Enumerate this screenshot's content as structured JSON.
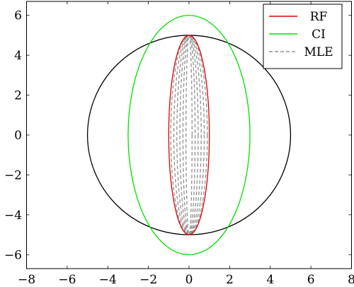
{
  "chart_data": {
    "type": "line",
    "title": "",
    "xlabel": "",
    "ylabel": "",
    "xlim": [
      -8,
      8
    ],
    "ylim": [
      -6.7,
      6.7
    ],
    "x_ticks": [
      -8,
      -6,
      -4,
      -2,
      0,
      2,
      4,
      6,
      8
    ],
    "y_ticks": [
      -6,
      -4,
      -2,
      0,
      2,
      4,
      6
    ],
    "x_tick_labels": [
      "−8",
      "−6",
      "−4",
      "−2",
      "0",
      "2",
      "4",
      "6",
      "8"
    ],
    "y_tick_labels": [
      "−6",
      "−4",
      "−2",
      "0",
      "2",
      "4",
      "6"
    ],
    "grid": false,
    "legend_position": "top-right",
    "series": [
      {
        "name": "",
        "shape": "ellipse",
        "center": [
          0,
          0
        ],
        "semi_axes": [
          5,
          5
        ],
        "color": "#000000",
        "dash": "solid",
        "in_legend": false
      },
      {
        "name": "RF",
        "shape": "ellipse",
        "center": [
          0,
          0
        ],
        "semi_axes": [
          1,
          5
        ],
        "color": "#e00000",
        "dash": "solid",
        "in_legend": true
      },
      {
        "name": "CI",
        "shape": "ellipse",
        "center": [
          0,
          0
        ],
        "semi_axes": [
          3,
          6
        ],
        "color": "#00e000",
        "dash": "solid",
        "in_legend": true
      },
      {
        "name": "MLE",
        "shape": "ellipse_family",
        "center": [
          0,
          0
        ],
        "semi_axes_list": [
          [
            0.9,
            5
          ],
          [
            0.75,
            5
          ],
          [
            0.6,
            5
          ],
          [
            0.45,
            5
          ],
          [
            0.3,
            5
          ],
          [
            0.15,
            5
          ]
        ],
        "color": "#909090",
        "dash": "dashed",
        "in_legend": true
      }
    ]
  }
}
